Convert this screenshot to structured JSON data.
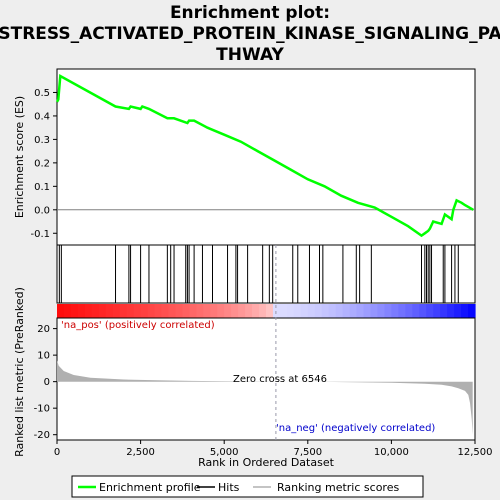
{
  "title_lines": [
    "Enrichment plot:",
    "STRESS_ACTIVATED_PROTEIN_KINASE_SIGNALING_PA",
    "THWAY"
  ],
  "colors": {
    "enrichment": "#00ff00",
    "hits": "#000000",
    "metric": "#b0b0b0",
    "pos_label": "#cc0000",
    "neg_label": "#0000cc",
    "zero_line": "#808080",
    "bar_pos": "#ff0000",
    "bar_neg": "#0000ff"
  },
  "chart_data": {
    "type": "line",
    "n_genes": 12500,
    "top_panel": {
      "ylabel": "Enrichment score (ES)",
      "ylim": [
        -0.15,
        0.6
      ],
      "yticks": [
        -0.1,
        0.0,
        0.1,
        0.2,
        0.3,
        0.4,
        0.5
      ],
      "ytick_labels": [
        "-0.1",
        "0.0",
        "0.1",
        "0.2",
        "0.3",
        "0.4",
        "0.5"
      ],
      "series": [
        {
          "name": "Enrichment profile",
          "x": [
            0,
            40,
            100,
            1750,
            2150,
            2200,
            2500,
            2550,
            2750,
            3300,
            3500,
            3900,
            3950,
            4100,
            4500,
            5000,
            5500,
            6000,
            6500,
            7000,
            7500,
            8000,
            8500,
            9000,
            9500,
            10000,
            10500,
            10900,
            11000,
            11100,
            11150,
            11250,
            11500,
            11600,
            11800,
            11850,
            11950,
            12100,
            12200,
            12450
          ],
          "y": [
            0.46,
            0.47,
            0.57,
            0.44,
            0.43,
            0.44,
            0.43,
            0.44,
            0.43,
            0.39,
            0.39,
            0.37,
            0.38,
            0.38,
            0.35,
            0.32,
            0.29,
            0.25,
            0.21,
            0.17,
            0.13,
            0.1,
            0.06,
            0.03,
            0.01,
            -0.03,
            -0.07,
            -0.11,
            -0.1,
            -0.09,
            -0.08,
            -0.05,
            -0.06,
            -0.02,
            -0.04,
            0.0,
            0.04,
            0.03,
            0.02,
            0.0
          ]
        }
      ]
    },
    "hits": [
      70,
      130,
      1750,
      2150,
      2200,
      2500,
      2750,
      3300,
      3400,
      3500,
      3850,
      3900,
      3950,
      4100,
      4350,
      4650,
      5100,
      5350,
      5400,
      5700,
      6150,
      6350,
      6450,
      7050,
      7200,
      7550,
      7850,
      7950,
      8550,
      8950,
      9050,
      9400,
      10900,
      11000,
      11050,
      11100,
      11150,
      11200,
      11550,
      11600,
      11800,
      11900,
      12000
    ],
    "bottom_panel": {
      "ylabel": "Ranked list metric (PreRanked)",
      "xlabel": "Rank in Ordered Dataset",
      "ylim": [
        -22,
        24
      ],
      "yticks": [
        -20,
        -10,
        0,
        10,
        20
      ],
      "ytick_labels": [
        "-20",
        "-10",
        "0",
        "10",
        "20"
      ],
      "xticks": [
        0,
        2500,
        5000,
        7500,
        10000,
        12500
      ],
      "xtick_labels": [
        "0",
        "2,500",
        "5,000",
        "7,500",
        "10,000",
        "12,500"
      ],
      "metric_profile": {
        "x": [
          0,
          50,
          200,
          500,
          1000,
          2000,
          3000,
          4000,
          5000,
          6546,
          8000,
          10000,
          11000,
          11500,
          11800,
          12000,
          12200,
          12300,
          12350,
          12400,
          12430
        ],
        "y": [
          8.0,
          6.0,
          4.0,
          2.5,
          1.5,
          0.8,
          0.5,
          0.3,
          0.15,
          0.0,
          -0.1,
          -0.4,
          -0.8,
          -1.2,
          -1.8,
          -2.5,
          -3.5,
          -5.0,
          -8.0,
          -14.0,
          -20.0
        ]
      },
      "zero_cross_rank": 6546
    },
    "annotations": {
      "pos_label": "'na_pos' (positively correlated)",
      "neg_label": "'na_neg' (negatively correlated)",
      "zero_cross": "Zero cross at 6546"
    },
    "legend": {
      "items": [
        {
          "label": "Enrichment profile",
          "kind": "enrichment"
        },
        {
          "label": "Hits",
          "kind": "hits"
        },
        {
          "label": "Ranking metric scores",
          "kind": "metric"
        }
      ]
    }
  }
}
